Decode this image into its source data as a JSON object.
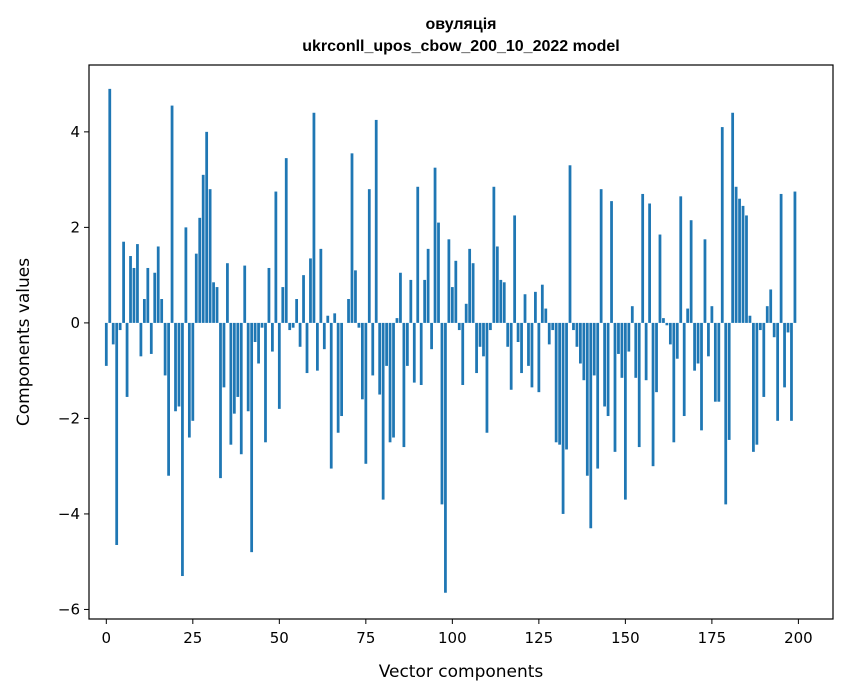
{
  "chart_data": {
    "type": "bar",
    "title_line1": "овуляція",
    "title_line2": "ukrconll_upos_cbow_200_10_2022 model",
    "xlabel": "Vector components",
    "ylabel": "Components values",
    "xlim": [
      -5,
      210
    ],
    "ylim": [
      -6.2,
      5.4
    ],
    "xticks": [
      0,
      25,
      50,
      75,
      100,
      125,
      150,
      175,
      200
    ],
    "xtick_labels": [
      "0",
      "25",
      "50",
      "75",
      "100",
      "125",
      "150",
      "175",
      "200"
    ],
    "yticks": [
      -6,
      -4,
      -2,
      0,
      2,
      4
    ],
    "ytick_labels": [
      "−6",
      "−4",
      "−2",
      "0",
      "2",
      "4"
    ],
    "bar_color": "#1f77b4",
    "values": [
      -0.9,
      4.9,
      -0.45,
      -4.65,
      -0.15,
      1.7,
      -1.55,
      1.4,
      1.15,
      1.65,
      -0.7,
      0.5,
      1.15,
      -0.65,
      1.05,
      1.6,
      0.5,
      -1.1,
      -3.2,
      4.55,
      -1.85,
      -1.75,
      -5.3,
      2.0,
      -2.4,
      -2.05,
      1.45,
      2.2,
      3.1,
      4.0,
      2.8,
      0.85,
      0.75,
      -3.25,
      -1.35,
      1.25,
      -2.55,
      -1.9,
      -1.55,
      -2.75,
      1.2,
      -1.85,
      -4.8,
      -0.4,
      -0.85,
      -0.1,
      -2.5,
      1.15,
      -0.6,
      2.75,
      -1.8,
      0.75,
      3.45,
      -0.15,
      -0.1,
      0.5,
      -0.5,
      1.0,
      -1.05,
      1.35,
      4.4,
      -1.0,
      1.55,
      -0.55,
      0.15,
      -3.05,
      0.2,
      -2.3,
      -1.95,
      0.0,
      0.5,
      3.55,
      1.1,
      -0.1,
      -1.6,
      -2.95,
      2.8,
      -1.1,
      4.25,
      -1.5,
      -3.7,
      -0.9,
      -2.5,
      -2.4,
      0.1,
      1.05,
      -2.6,
      -0.9,
      0.9,
      -1.25,
      2.85,
      -1.3,
      0.9,
      1.55,
      -0.55,
      3.25,
      2.1,
      -3.8,
      -5.65,
      1.75,
      0.75,
      1.3,
      -0.15,
      -1.3,
      0.4,
      1.55,
      1.25,
      -1.05,
      -0.5,
      -0.7,
      -2.3,
      -0.15,
      2.85,
      1.6,
      0.9,
      0.85,
      -0.5,
      -1.4,
      2.25,
      -0.4,
      -1.05,
      0.6,
      -0.9,
      -1.35,
      0.65,
      -1.45,
      0.8,
      0.3,
      -0.45,
      -0.15,
      -2.5,
      -2.55,
      -4.0,
      -2.65,
      3.3,
      -0.15,
      -0.5,
      -0.85,
      -1.2,
      -3.2,
      -4.3,
      -1.1,
      -3.05,
      2.8,
      -1.75,
      -1.95,
      2.55,
      -2.7,
      -0.65,
      -1.15,
      -3.7,
      -0.6,
      0.35,
      -1.15,
      -2.6,
      2.7,
      -1.2,
      2.5,
      -3.0,
      -1.45,
      1.85,
      0.1,
      -0.05,
      -0.45,
      -2.5,
      -0.75,
      2.65,
      -1.95,
      0.3,
      2.15,
      -1.0,
      -0.85,
      -2.25,
      1.75,
      -0.7,
      0.35,
      -1.65,
      -1.65,
      4.1,
      -3.8,
      -2.45,
      4.4,
      2.85,
      2.6,
      2.45,
      2.25,
      0.15,
      -2.7,
      -2.55,
      -0.15,
      -1.55,
      0.35,
      0.7,
      -0.3,
      -2.05,
      2.7,
      -1.35,
      -0.2,
      -2.05,
      2.75
    ]
  }
}
